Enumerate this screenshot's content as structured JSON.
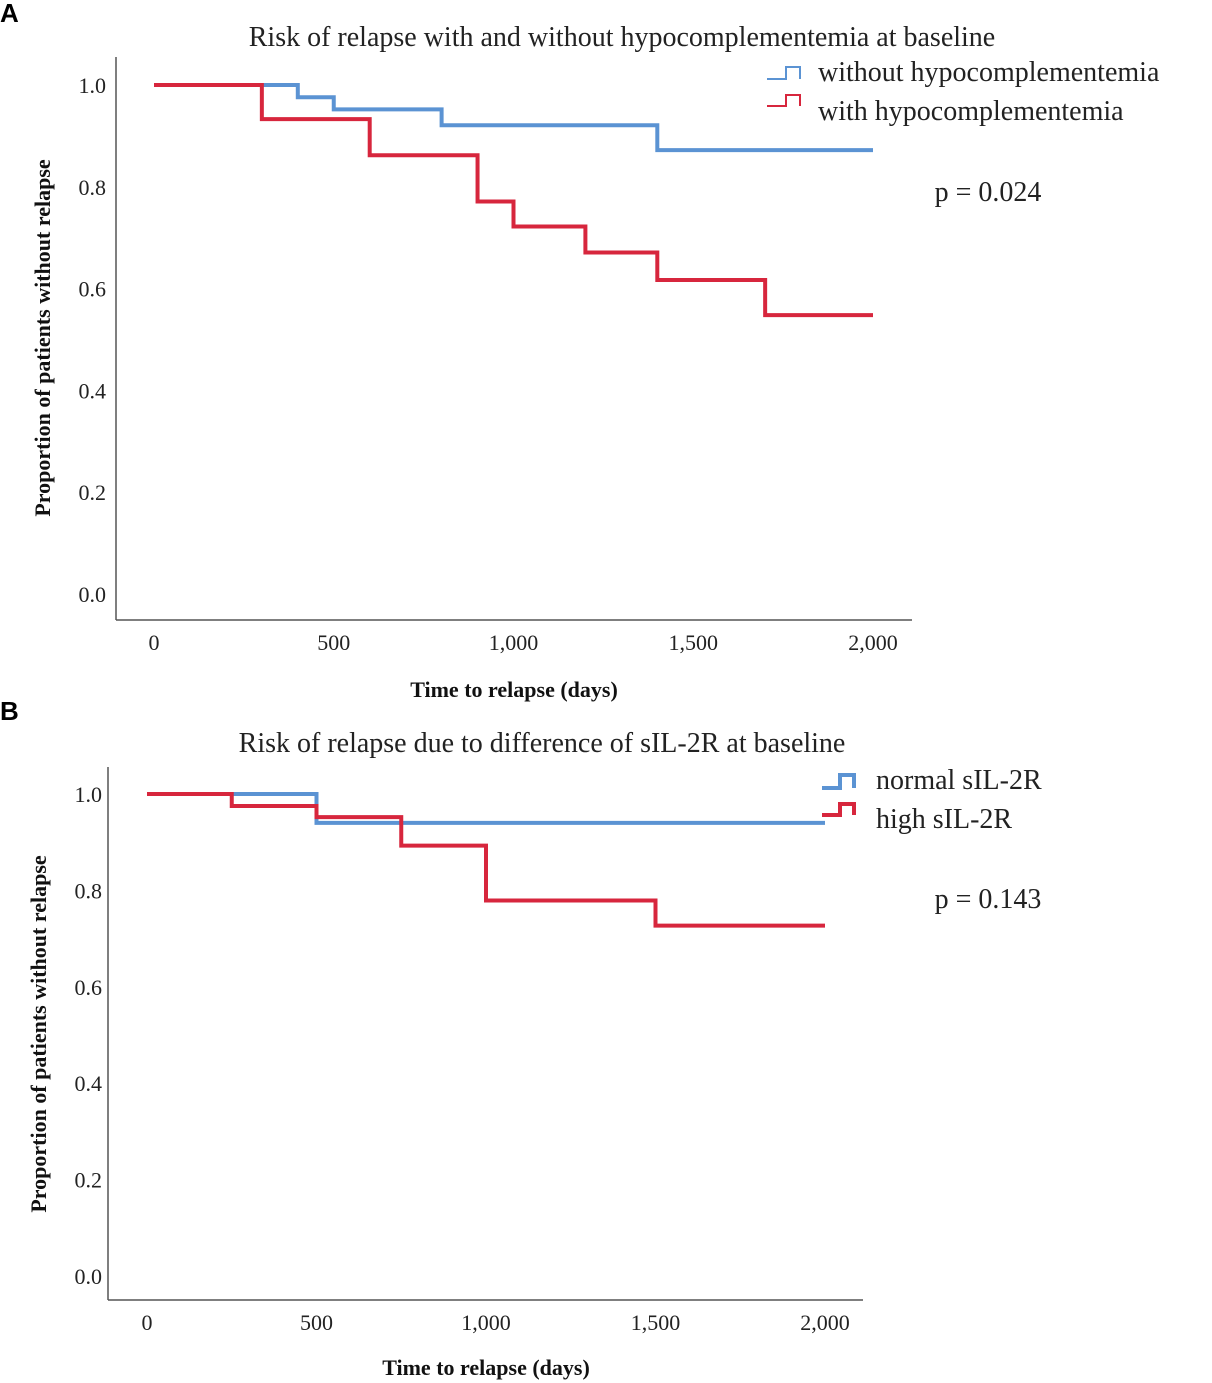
{
  "chart_data": [
    {
      "panel": "A",
      "type": "line",
      "step": true,
      "title": "Risk of relapse with and without hypocomplementemia at baseline",
      "xlabel": "Time to relapse (days)",
      "ylabel": "Proportion of patients without relapse",
      "xlim": [
        0,
        2000
      ],
      "ylim": [
        0,
        1.0
      ],
      "x_ticks": [
        0,
        500,
        1000,
        1500,
        2000
      ],
      "x_tick_labels": [
        "0",
        "500",
        "1,000",
        "1,500",
        "2,000"
      ],
      "y_ticks": [
        0,
        0.2,
        0.4,
        0.6,
        0.8,
        1.0
      ],
      "y_tick_labels": [
        "0.0",
        "0.2",
        "0.4",
        "0.6",
        "0.8",
        "1.0"
      ],
      "p_value": "p = 0.024",
      "legend_position": "top-right",
      "series": [
        {
          "name": "without hypocomplementemia",
          "color": "#5B93D3",
          "x": [
            0,
            400,
            500,
            800,
            1400,
            2000
          ],
          "y": [
            1.0,
            0.976,
            0.952,
            0.921,
            0.872,
            0.872
          ]
        },
        {
          "name": "with hypocomplementemia",
          "color": "#D7263D",
          "x": [
            0,
            300,
            600,
            900,
            1000,
            1200,
            1400,
            1700,
            2000
          ],
          "y": [
            1.0,
            0.933,
            0.862,
            0.771,
            0.722,
            0.671,
            0.617,
            0.548,
            0.548
          ]
        }
      ]
    },
    {
      "panel": "B",
      "type": "line",
      "step": true,
      "title": "Risk of relapse due to difference of sIL-2R at baseline",
      "xlabel": "Time to relapse (days)",
      "ylabel": "Proportion of patients without relapse",
      "xlim": [
        0,
        2000
      ],
      "ylim": [
        0,
        1.0
      ],
      "x_ticks": [
        0,
        500,
        1000,
        1500,
        2000
      ],
      "x_tick_labels": [
        "0",
        "500",
        "1,000",
        "1,500",
        "2,000"
      ],
      "y_ticks": [
        0,
        0.2,
        0.4,
        0.6,
        0.8,
        1.0
      ],
      "y_tick_labels": [
        "0.0",
        "0.2",
        "0.4",
        "0.6",
        "0.8",
        "1.0"
      ],
      "p_value": "p = 0.143",
      "legend_position": "top-right",
      "series": [
        {
          "name": "normal sIL-2R",
          "color": "#5B93D3",
          "x": [
            0,
            500,
            2000
          ],
          "y": [
            1.0,
            0.94,
            0.94
          ]
        },
        {
          "name": "high sIL-2R",
          "color": "#D7263D",
          "x": [
            0,
            250,
            500,
            750,
            1000,
            1500,
            2000
          ],
          "y": [
            1.0,
            0.975,
            0.952,
            0.893,
            0.779,
            0.727,
            0.727
          ]
        }
      ]
    }
  ]
}
